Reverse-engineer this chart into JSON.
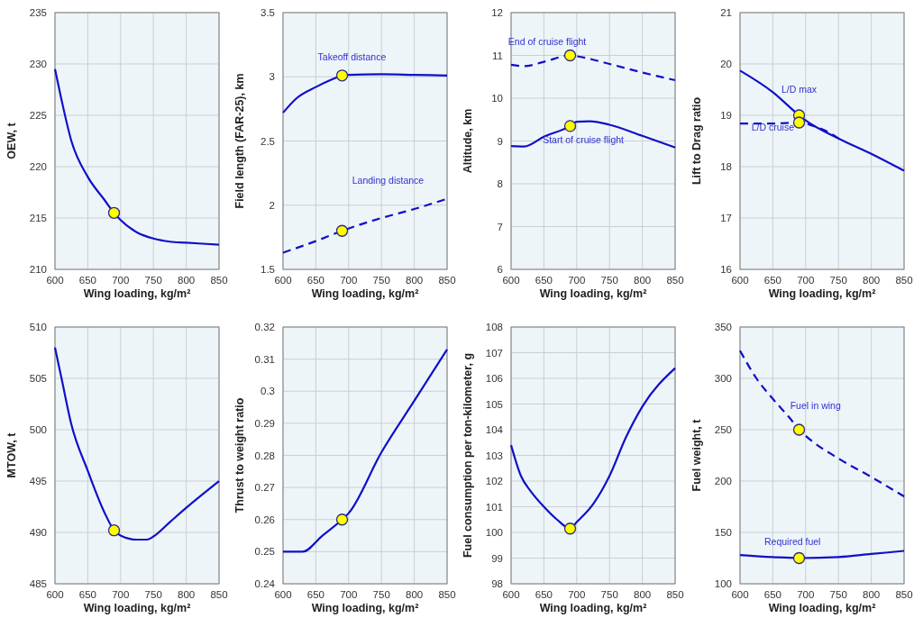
{
  "chart_data": [
    {
      "type": "line",
      "xlabel": "Wing loading, kg/m²",
      "ylabel": "OEW, t",
      "xlim": [
        600,
        850
      ],
      "xticks": [
        600,
        650,
        700,
        750,
        800,
        850
      ],
      "ylim": [
        210,
        235
      ],
      "yticks": [
        210,
        215,
        220,
        225,
        230,
        235
      ],
      "grid": true,
      "series": [
        {
          "color": "#1010c8",
          "line_style": "solid",
          "x": [
            600,
            610,
            625,
            650,
            675,
            690,
            700,
            725,
            750,
            775,
            800,
            850
          ],
          "values": [
            229.5,
            226.5,
            222.5,
            219,
            216.8,
            215.5,
            214.8,
            213.6,
            213.0,
            212.7,
            212.6,
            212.4
          ]
        },
        {
          "type": "scatter",
          "marker": "circle",
          "color": "#ffff00",
          "x": [
            690
          ],
          "values": [
            215.5
          ]
        }
      ]
    },
    {
      "type": "line",
      "xlabel": "Wing loading, kg/m²",
      "ylabel": "Field length (FAR-25), km",
      "xlim": [
        600,
        850
      ],
      "xticks": [
        600,
        650,
        700,
        750,
        800,
        850
      ],
      "ylim": [
        1.5,
        3.5
      ],
      "yticks": [
        1.5,
        2,
        2.5,
        3,
        3.5
      ],
      "grid": true,
      "series": [
        {
          "name": "Takeoff distance",
          "color": "#1010c8",
          "line_style": "solid",
          "x": [
            600,
            620,
            650,
            675,
            690,
            700,
            750,
            800,
            850
          ],
          "values": [
            2.72,
            2.83,
            2.92,
            2.98,
            3.01,
            3.015,
            3.02,
            3.015,
            3.01
          ]
        },
        {
          "name": "Landing distance",
          "color": "#1010c8",
          "line_style": "dashed",
          "x": [
            600,
            650,
            690,
            750,
            800,
            850
          ],
          "values": [
            1.63,
            1.72,
            1.8,
            1.9,
            1.97,
            2.05
          ]
        },
        {
          "type": "scatter",
          "marker": "circle",
          "color": "#ffff00",
          "x": [
            690,
            690
          ],
          "values": [
            3.01,
            1.8
          ]
        }
      ]
    },
    {
      "type": "line",
      "xlabel": "Wing loading, kg/m²",
      "ylabel": "Altitude, km",
      "xlim": [
        600,
        850
      ],
      "xticks": [
        600,
        650,
        700,
        750,
        800,
        850
      ],
      "ylim": [
        6,
        12
      ],
      "yticks": [
        6,
        7,
        8,
        9,
        10,
        11,
        12
      ],
      "grid": true,
      "series": [
        {
          "name": "End of cruise flight",
          "color": "#1010c8",
          "line_style": "dashed",
          "x": [
            600,
            620,
            650,
            690,
            700,
            750,
            800,
            850
          ],
          "values": [
            10.78,
            10.75,
            10.85,
            11.0,
            10.98,
            10.8,
            10.6,
            10.42
          ]
        },
        {
          "name": "Start of cruise flight",
          "color": "#1010c8",
          "line_style": "solid",
          "x": [
            600,
            620,
            650,
            690,
            700,
            720,
            750,
            800,
            850
          ],
          "values": [
            8.88,
            8.87,
            9.1,
            9.35,
            9.45,
            9.46,
            9.38,
            9.12,
            8.85
          ]
        },
        {
          "type": "scatter",
          "marker": "circle",
          "color": "#ffff00",
          "x": [
            690,
            690
          ],
          "values": [
            11.0,
            9.35
          ]
        }
      ]
    },
    {
      "type": "line",
      "xlabel": "Wing loading, kg/m²",
      "ylabel": "Lift to Drag ratio",
      "xlim": [
        600,
        850
      ],
      "xticks": [
        600,
        650,
        700,
        750,
        800,
        850
      ],
      "ylim": [
        16,
        21
      ],
      "yticks": [
        16,
        17,
        18,
        19,
        20,
        21
      ],
      "grid": true,
      "series": [
        {
          "name": "L/D max",
          "color": "#1010c8",
          "line_style": "solid",
          "x": [
            600,
            650,
            690,
            700,
            750,
            800,
            850
          ],
          "values": [
            19.87,
            19.45,
            19.0,
            18.9,
            18.55,
            18.25,
            17.92
          ]
        },
        {
          "name": "L/D cruise",
          "color": "#1010c8",
          "line_style": "dashed",
          "x": [
            600,
            650,
            690,
            710,
            730,
            750
          ],
          "values": [
            18.84,
            18.84,
            18.86,
            18.8,
            18.7,
            18.55
          ]
        },
        {
          "type": "scatter",
          "marker": "circle",
          "color": "#ffff00",
          "x": [
            690,
            690
          ],
          "values": [
            19.0,
            18.86
          ]
        }
      ]
    },
    {
      "type": "line",
      "xlabel": "Wing loading, kg/m²",
      "ylabel": "MTOW, t",
      "xlim": [
        600,
        850
      ],
      "xticks": [
        600,
        650,
        700,
        750,
        800,
        850
      ],
      "ylim": [
        485,
        510
      ],
      "yticks": [
        485,
        490,
        495,
        500,
        505,
        510
      ],
      "grid": true,
      "series": [
        {
          "color": "#1010c8",
          "line_style": "solid",
          "x": [
            600,
            610,
            625,
            650,
            675,
            690,
            700,
            725,
            740,
            750,
            775,
            800,
            850
          ],
          "values": [
            508,
            505,
            500.5,
            496,
            492,
            490.2,
            489.7,
            489.3,
            489.3,
            489.6,
            491,
            492.4,
            495
          ]
        },
        {
          "type": "scatter",
          "marker": "circle",
          "color": "#ffff00",
          "x": [
            690
          ],
          "values": [
            490.2
          ]
        }
      ]
    },
    {
      "type": "line",
      "xlabel": "Wing loading, kg/m²",
      "ylabel": "Thrust to weight ratio",
      "xlim": [
        600,
        850
      ],
      "xticks": [
        600,
        650,
        700,
        750,
        800,
        850
      ],
      "ylim": [
        0.24,
        0.32
      ],
      "yticks": [
        0.24,
        0.25,
        0.26,
        0.27,
        0.28,
        0.29,
        0.3,
        0.31,
        0.32
      ],
      "grid": true,
      "series": [
        {
          "color": "#1010c8",
          "line_style": "solid",
          "x": [
            600,
            630,
            660,
            690,
            700,
            750,
            800,
            850
          ],
          "values": [
            0.25,
            0.25,
            0.255,
            0.26,
            0.262,
            0.281,
            0.297,
            0.313
          ]
        },
        {
          "type": "scatter",
          "marker": "circle",
          "color": "#ffff00",
          "x": [
            690
          ],
          "values": [
            0.26
          ]
        }
      ]
    },
    {
      "type": "line",
      "xlabel": "Wing loading, kg/m²",
      "ylabel": "Fuel consumption per ton-kilometer, g",
      "xlim": [
        600,
        850
      ],
      "xticks": [
        600,
        650,
        700,
        750,
        800,
        850
      ],
      "ylim": [
        98,
        108
      ],
      "yticks": [
        98,
        99,
        100,
        101,
        102,
        103,
        104,
        105,
        106,
        107,
        108
      ],
      "grid": true,
      "series": [
        {
          "color": "#1010c8",
          "line_style": "solid",
          "x": [
            600,
            615,
            630,
            650,
            670,
            690,
            700,
            725,
            750,
            775,
            800,
            850
          ],
          "values": [
            103.4,
            102.2,
            101.6,
            101.0,
            100.5,
            100.15,
            100.4,
            101.1,
            102.2,
            103.7,
            104.9,
            106.4
          ]
        },
        {
          "type": "scatter",
          "marker": "circle",
          "color": "#ffff00",
          "x": [
            690
          ],
          "values": [
            100.15
          ]
        }
      ]
    },
    {
      "type": "line",
      "xlabel": "Wing loading, kg/m²",
      "ylabel": "Fuel weight, t",
      "xlim": [
        600,
        850
      ],
      "xticks": [
        600,
        650,
        700,
        750,
        800,
        850
      ],
      "ylim": [
        100,
        350
      ],
      "yticks": [
        100,
        150,
        200,
        250,
        300,
        350
      ],
      "grid": true,
      "series": [
        {
          "name": "Fuel in wing",
          "color": "#1010c8",
          "line_style": "dashed",
          "x": [
            600,
            625,
            650,
            675,
            690,
            700,
            750,
            800,
            850
          ],
          "values": [
            327,
            300,
            280,
            262,
            250,
            244,
            222,
            204,
            185
          ]
        },
        {
          "name": "Required fuel",
          "color": "#1010c8",
          "line_style": "solid",
          "x": [
            600,
            650,
            690,
            750,
            800,
            850
          ],
          "values": [
            128,
            126,
            125,
            126,
            129,
            132
          ]
        },
        {
          "type": "scatter",
          "marker": "circle",
          "color": "#ffff00",
          "x": [
            690,
            690
          ],
          "values": [
            250,
            125
          ]
        }
      ]
    }
  ]
}
